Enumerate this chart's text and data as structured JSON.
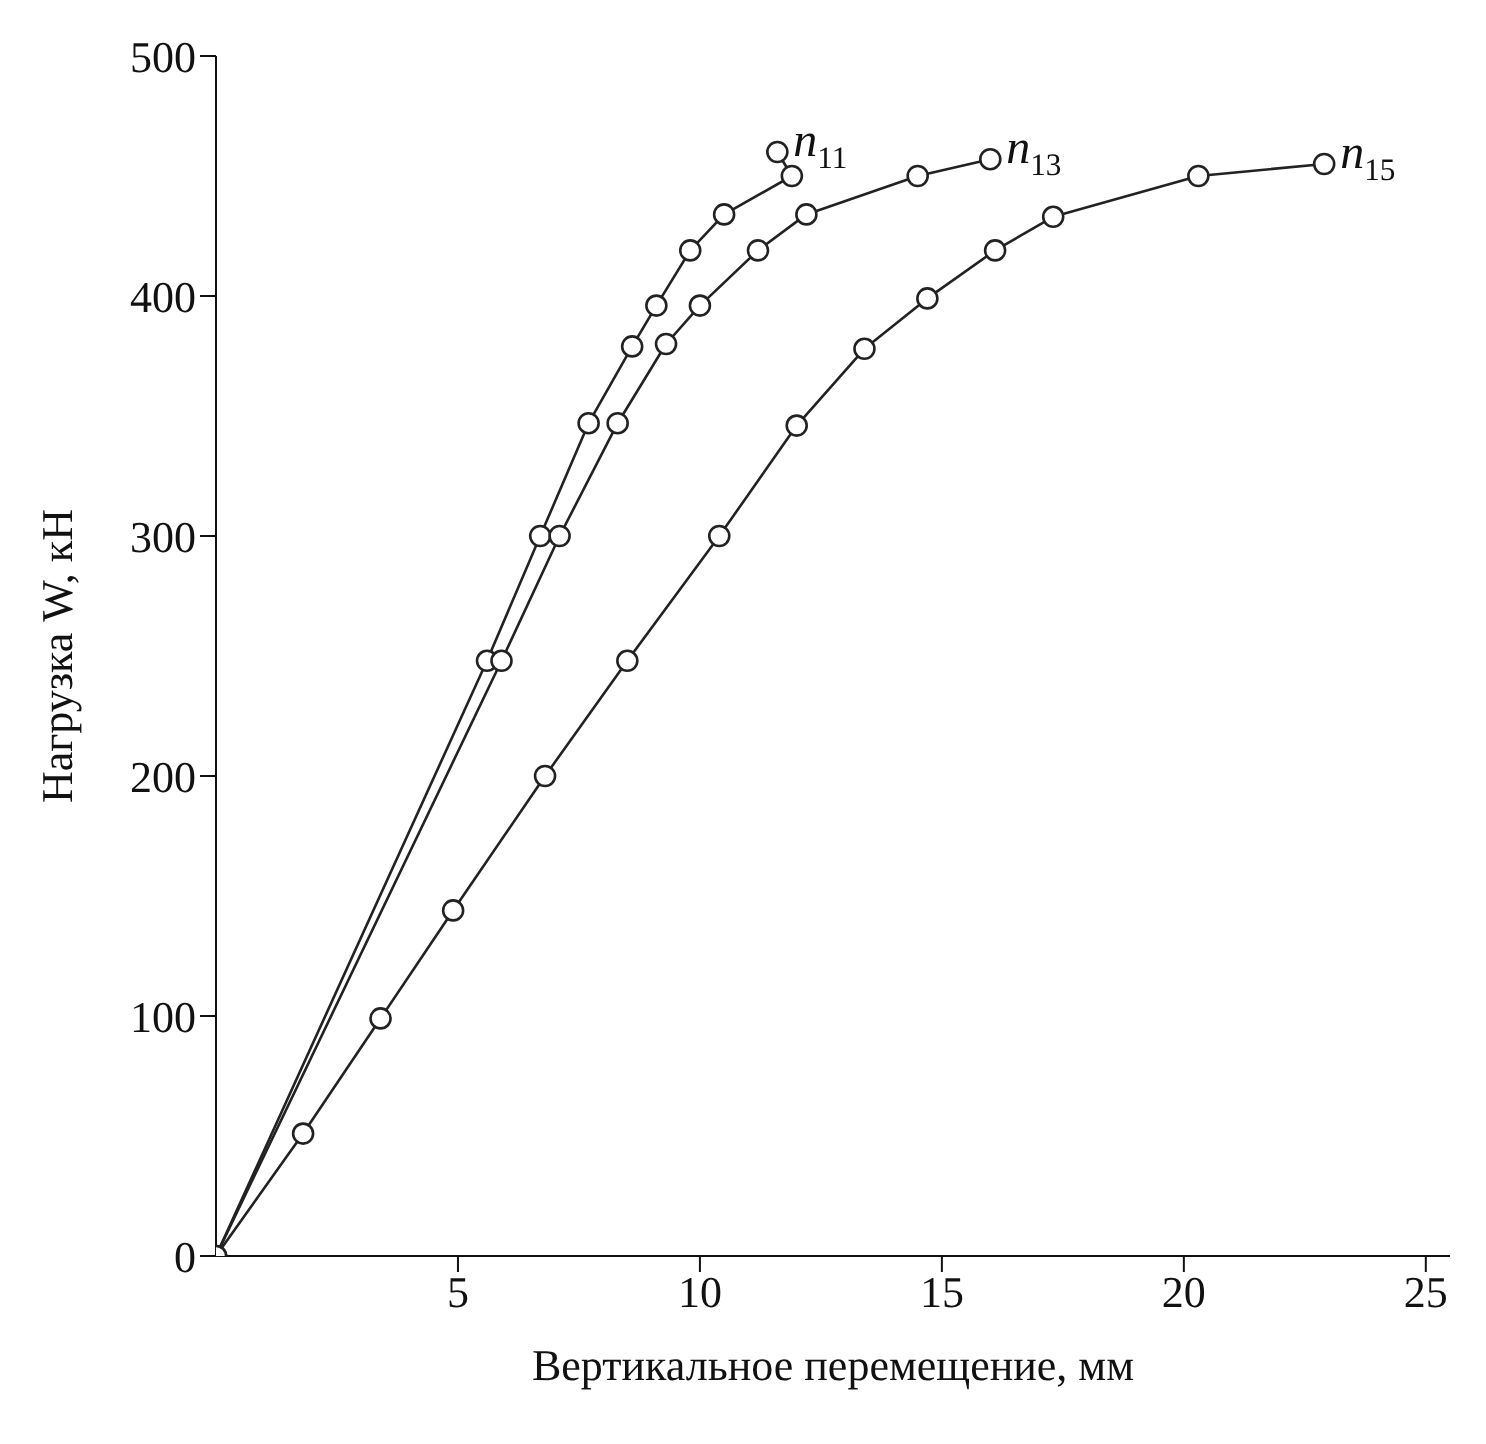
{
  "chart_data": {
    "type": "line",
    "xlabel": "Вертикальное перемещение, мм",
    "ylabel": "Нагрузка W, кН",
    "xlim": [
      0,
      25.5
    ],
    "xticks": [
      5,
      10,
      15,
      20,
      25
    ],
    "ylim": [
      0,
      500
    ],
    "yticks": [
      0,
      100,
      200,
      300,
      400,
      500
    ],
    "grid": false,
    "legend": false,
    "marker": "circle",
    "line_style": "solid",
    "series": [
      {
        "name": "n$_{11}$",
        "color": "#222222",
        "x": [
          0,
          5.6,
          6.7,
          7.7,
          8.6,
          9.1,
          9.8,
          10.5,
          11.9,
          11.6
        ],
        "values": [
          0,
          248,
          300,
          347,
          379,
          396,
          419,
          434,
          450,
          460
        ]
      },
      {
        "name": "n$_{13}$",
        "color": "#222222",
        "x": [
          0,
          5.9,
          7.1,
          8.3,
          9.3,
          10,
          11.2,
          12.2,
          14.5,
          16
        ],
        "values": [
          0,
          248,
          300,
          347,
          380,
          396,
          419,
          434,
          450,
          457
        ]
      },
      {
        "name": "n$_{15}$",
        "color": "#222222",
        "x": [
          0,
          1.8,
          3.4,
          4.9,
          6.8,
          8.5,
          10.4,
          12,
          13.4,
          14.7,
          16.1,
          17.3,
          20.3,
          22.9
        ],
        "values": [
          0,
          51,
          99,
          144,
          200,
          248,
          300,
          346,
          378,
          399,
          419,
          433,
          450,
          455
        ]
      }
    ]
  }
}
